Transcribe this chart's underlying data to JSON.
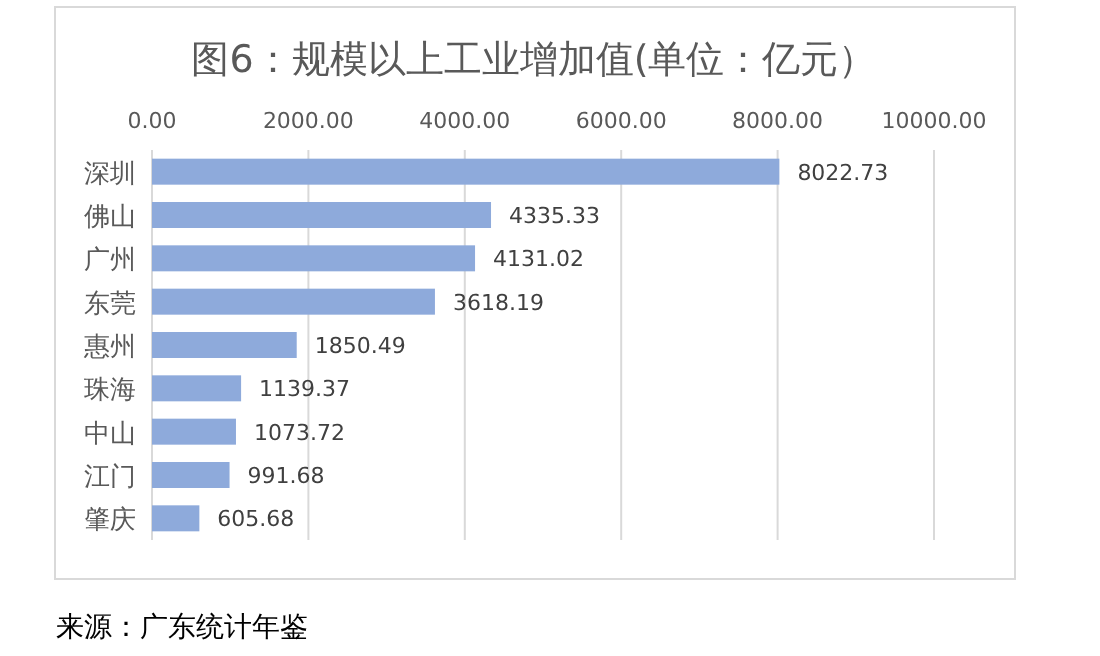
{
  "chart_data": {
    "type": "bar",
    "orientation": "horizontal",
    "title": "图6：规模以上工业增加值(单位：亿元）",
    "categories": [
      "深圳",
      "佛山",
      "广州",
      "东莞",
      "惠州",
      "珠海",
      "中山",
      "江门",
      "肇庆"
    ],
    "values": [
      8022.73,
      4335.33,
      4131.02,
      3618.19,
      1850.49,
      1139.37,
      1073.72,
      991.68,
      605.68
    ],
    "color": "#8eaadb",
    "xlim": [
      0,
      10000
    ],
    "xticks": [
      {
        "value": 0,
        "label": "0.00"
      },
      {
        "value": 2000,
        "label": "2000.00"
      },
      {
        "value": 4000,
        "label": "4000.00"
      },
      {
        "value": 6000,
        "label": "6000.00"
      },
      {
        "value": 8000,
        "label": "8000.00"
      },
      {
        "value": 10000,
        "label": "10000.00"
      }
    ],
    "grid": "x",
    "data_labels": true,
    "annotations": [
      "来源：广东统计年鉴"
    ]
  }
}
